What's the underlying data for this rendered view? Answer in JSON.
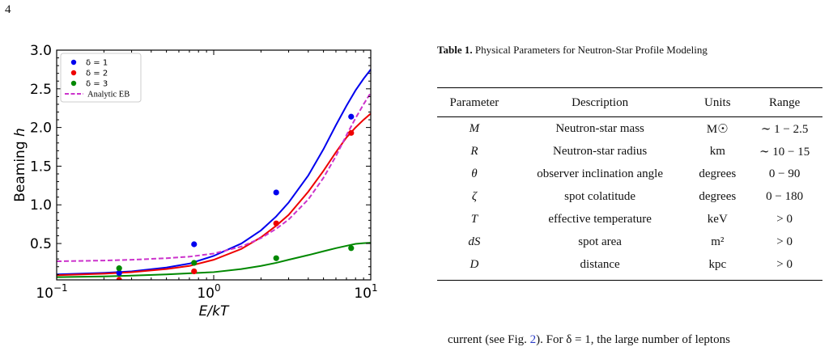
{
  "page_number": "4",
  "chart_data": {
    "type": "scatter",
    "xscale": "log",
    "xlim": [
      0.1,
      10
    ],
    "ylim": [
      0.03,
      3.0
    ],
    "xlabel": "E/kT",
    "ylabel": "Beaming h",
    "ylabel_parts": [
      "Beaming ",
      "h"
    ],
    "xticks": [
      {
        "value": 0.1,
        "base": "10",
        "exp": "−1"
      },
      {
        "value": 1,
        "base": "10",
        "exp": "0"
      },
      {
        "value": 10,
        "base": "10",
        "exp": "1"
      }
    ],
    "yticks": [
      {
        "value": 0.5,
        "label": "0.5"
      },
      {
        "value": 1.0,
        "label": "1.0"
      },
      {
        "value": 1.5,
        "label": "1.5"
      },
      {
        "value": 2.0,
        "label": "2.0"
      },
      {
        "value": 2.5,
        "label": "2.5"
      },
      {
        "value": 3.0,
        "label": "3.0"
      }
    ],
    "legend_position": "top-left",
    "series": [
      {
        "name": "δ = 1",
        "color": "#0000ee",
        "points": {
          "x": [
            0.25,
            0.75,
            2.5,
            7.5
          ],
          "y": [
            0.12,
            0.49,
            1.16,
            2.14
          ]
        },
        "curve": {
          "x": [
            0.1,
            0.2,
            0.3,
            0.5,
            0.7,
            1.0,
            1.5,
            2.0,
            2.5,
            3.0,
            4.0,
            5.0,
            6.0,
            7.0,
            8.0,
            9.0,
            10.0
          ],
          "y": [
            0.1,
            0.12,
            0.14,
            0.19,
            0.24,
            0.34,
            0.5,
            0.67,
            0.85,
            1.03,
            1.38,
            1.72,
            2.03,
            2.28,
            2.48,
            2.63,
            2.75
          ]
        }
      },
      {
        "name": "δ = 2",
        "color": "#ee0000",
        "points": {
          "x": [
            0.25,
            0.75,
            2.5,
            7.5
          ],
          "y": [
            0.03,
            0.14,
            0.76,
            1.93
          ]
        },
        "curve": {
          "x": [
            0.1,
            0.2,
            0.3,
            0.5,
            0.7,
            1.0,
            1.5,
            2.0,
            2.5,
            3.0,
            4.0,
            5.0,
            6.0,
            7.0,
            8.0,
            9.0,
            10.0
          ],
          "y": [
            0.09,
            0.11,
            0.13,
            0.17,
            0.21,
            0.29,
            0.43,
            0.58,
            0.73,
            0.87,
            1.17,
            1.44,
            1.68,
            1.87,
            2.0,
            2.1,
            2.18
          ]
        }
      },
      {
        "name": "δ = 3",
        "color": "#008800",
        "points": {
          "x": [
            0.25,
            0.75,
            2.5,
            7.5
          ],
          "y": [
            0.18,
            0.25,
            0.31,
            0.44
          ]
        },
        "curve": {
          "x": [
            0.1,
            0.2,
            0.3,
            0.5,
            0.7,
            1.0,
            1.5,
            2.0,
            2.5,
            3.0,
            4.0,
            5.0,
            6.0,
            7.0,
            8.0,
            9.0,
            10.0
          ],
          "y": [
            0.065,
            0.075,
            0.085,
            0.1,
            0.115,
            0.13,
            0.17,
            0.21,
            0.25,
            0.29,
            0.35,
            0.4,
            0.44,
            0.47,
            0.495,
            0.505,
            0.51
          ]
        }
      },
      {
        "name": "Analytic EB",
        "color": "#cc33cc",
        "dashed": true,
        "curve": {
          "x": [
            0.1,
            0.2,
            0.3,
            0.5,
            0.7,
            1.0,
            1.5,
            2.0,
            2.5,
            3.0,
            4.0,
            5.0,
            6.0,
            7.0,
            8.0,
            9.0,
            10.0
          ],
          "y": [
            0.27,
            0.28,
            0.29,
            0.31,
            0.33,
            0.37,
            0.46,
            0.57,
            0.69,
            0.81,
            1.07,
            1.35,
            1.63,
            1.9,
            2.12,
            2.3,
            2.45
          ]
        }
      }
    ]
  },
  "table": {
    "caption_bold": "Table 1.",
    "caption_text": " Physical Parameters for Neutron-Star Profile Modeling",
    "headers": [
      "Parameter",
      "Description",
      "Units",
      "Range"
    ],
    "rows": [
      {
        "param": "M",
        "desc": "Neutron-star mass",
        "units": "M☉",
        "range": "∼ 1 − 2.5"
      },
      {
        "param": "R",
        "desc": "Neutron-star radius",
        "units": "km",
        "range": "∼ 10 − 15"
      },
      {
        "param": "θ",
        "desc": "observer inclination angle",
        "units": "degrees",
        "range": "0 − 90"
      },
      {
        "param": "ζ",
        "desc": "spot colatitude",
        "units": "degrees",
        "range": "0 − 180"
      },
      {
        "param": "T",
        "desc": "effective temperature",
        "units": "keV",
        "range": "> 0"
      },
      {
        "param": "dS",
        "desc": "spot area",
        "units": "m²",
        "range": "> 0"
      },
      {
        "param": "D",
        "desc": "distance",
        "units": "kpc",
        "range": "> 0"
      }
    ]
  },
  "body_text": {
    "before_link": "current (see Fig. ",
    "link": "2",
    "after_link": "). For δ = 1, the large number of leptons"
  }
}
